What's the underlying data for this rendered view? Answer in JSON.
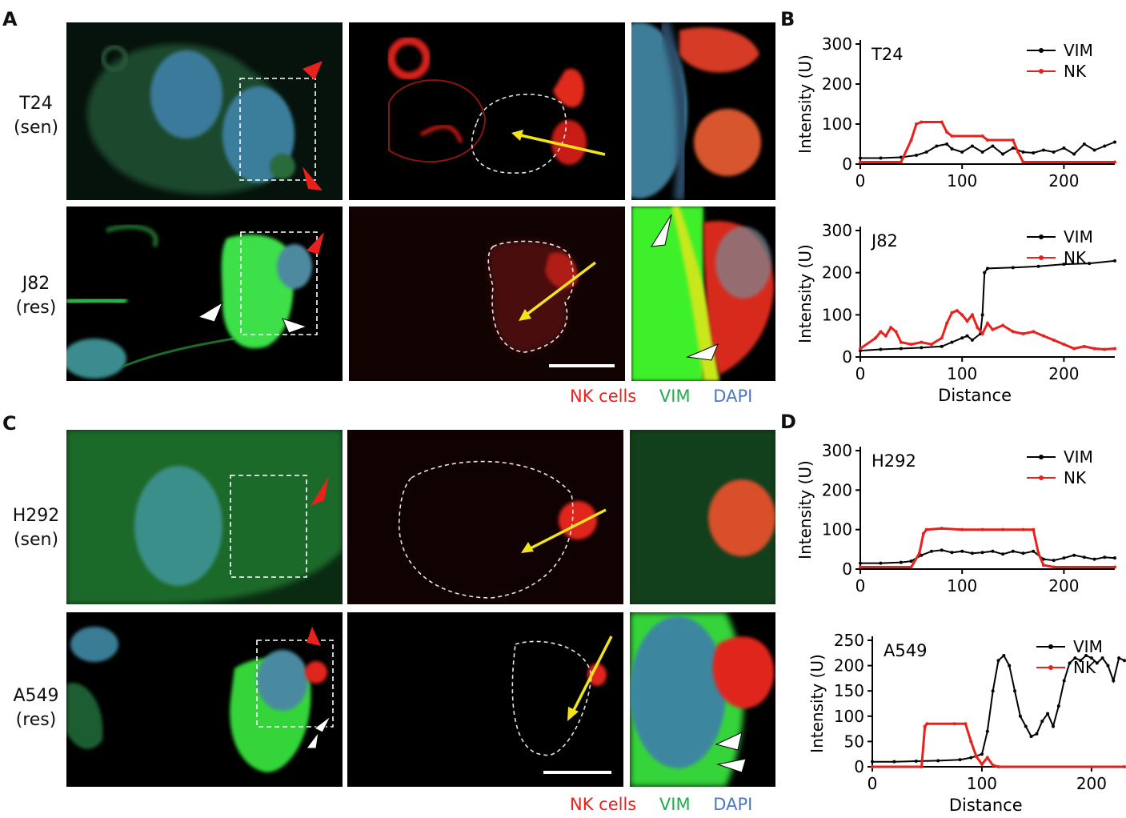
{
  "panels": {
    "A": "A",
    "B": "B",
    "C": "C",
    "D": "D"
  },
  "rows": {
    "t24": {
      "line1": "T24",
      "line2": "(sen)"
    },
    "j82": {
      "line1": "J82",
      "line2": "(res)"
    },
    "h292": {
      "line1": "H292",
      "line2": "(sen)"
    },
    "a549": {
      "line1": "A549",
      "line2": "(res)"
    }
  },
  "legend": {
    "nk": "NK cells",
    "vim": "VIM",
    "dapi": "DAPI",
    "colors": {
      "nk": "#e8211d",
      "vim": "#1fae4b",
      "dapi": "#4a78c2"
    }
  },
  "chart_data": [
    {
      "type": "line",
      "panel": "B",
      "title": "T24",
      "ylabel": "Intensity (U)",
      "xlabel": "",
      "xlim": [
        0,
        250
      ],
      "ylim": [
        0,
        300
      ],
      "xticks": [
        0,
        100,
        200
      ],
      "yticks": [
        0,
        100,
        200,
        300
      ],
      "series": [
        {
          "name": "VIM",
          "color": "#000000",
          "points": [
            [
              0,
              15
            ],
            [
              20,
              15
            ],
            [
              40,
              17
            ],
            [
              55,
              22
            ],
            [
              65,
              30
            ],
            [
              75,
              45
            ],
            [
              85,
              50
            ],
            [
              90,
              38
            ],
            [
              100,
              30
            ],
            [
              110,
              45
            ],
            [
              120,
              30
            ],
            [
              130,
              45
            ],
            [
              140,
              25
            ],
            [
              150,
              40
            ],
            [
              160,
              30
            ],
            [
              170,
              28
            ],
            [
              180,
              35
            ],
            [
              190,
              30
            ],
            [
              200,
              40
            ],
            [
              210,
              25
            ],
            [
              220,
              50
            ],
            [
              230,
              35
            ],
            [
              240,
              45
            ],
            [
              250,
              55
            ]
          ]
        },
        {
          "name": "NK",
          "color": "#e8211d",
          "points": [
            [
              0,
              5
            ],
            [
              40,
              5
            ],
            [
              50,
              60
            ],
            [
              55,
              100
            ],
            [
              60,
              105
            ],
            [
              80,
              105
            ],
            [
              85,
              80
            ],
            [
              90,
              70
            ],
            [
              120,
              70
            ],
            [
              125,
              60
            ],
            [
              150,
              60
            ],
            [
              155,
              30
            ],
            [
              160,
              5
            ],
            [
              250,
              5
            ]
          ]
        }
      ]
    },
    {
      "type": "line",
      "panel": "B",
      "title": "J82",
      "ylabel": "Intensity (U)",
      "xlabel": "Distance",
      "xlim": [
        0,
        250
      ],
      "ylim": [
        0,
        300
      ],
      "xticks": [
        0,
        100,
        200
      ],
      "yticks": [
        0,
        100,
        200,
        300
      ],
      "series": [
        {
          "name": "VIM",
          "color": "#000000",
          "points": [
            [
              0,
              15
            ],
            [
              20,
              18
            ],
            [
              40,
              20
            ],
            [
              60,
              22
            ],
            [
              80,
              25
            ],
            [
              90,
              35
            ],
            [
              100,
              45
            ],
            [
              105,
              50
            ],
            [
              110,
              40
            ],
            [
              118,
              55
            ],
            [
              120,
              100
            ],
            [
              122,
              200
            ],
            [
              125,
              210
            ],
            [
              150,
              212
            ],
            [
              175,
              215
            ],
            [
              200,
              220
            ],
            [
              225,
              222
            ],
            [
              250,
              228
            ]
          ]
        },
        {
          "name": "NK",
          "color": "#e8211d",
          "points": [
            [
              0,
              20
            ],
            [
              15,
              45
            ],
            [
              20,
              60
            ],
            [
              25,
              50
            ],
            [
              30,
              70
            ],
            [
              35,
              60
            ],
            [
              40,
              35
            ],
            [
              50,
              30
            ],
            [
              60,
              35
            ],
            [
              70,
              30
            ],
            [
              80,
              45
            ],
            [
              85,
              80
            ],
            [
              90,
              105
            ],
            [
              95,
              110
            ],
            [
              100,
              100
            ],
            [
              105,
              85
            ],
            [
              110,
              100
            ],
            [
              115,
              70
            ],
            [
              120,
              55
            ],
            [
              125,
              80
            ],
            [
              130,
              65
            ],
            [
              140,
              75
            ],
            [
              150,
              60
            ],
            [
              160,
              55
            ],
            [
              170,
              60
            ],
            [
              180,
              50
            ],
            [
              190,
              40
            ],
            [
              200,
              30
            ],
            [
              210,
              20
            ],
            [
              220,
              25
            ],
            [
              230,
              20
            ],
            [
              240,
              18
            ],
            [
              250,
              20
            ]
          ]
        }
      ]
    },
    {
      "type": "line",
      "panel": "D",
      "title": "H292",
      "ylabel": "Intensity (U)",
      "xlabel": "",
      "xlim": [
        0,
        250
      ],
      "ylim": [
        0,
        300
      ],
      "xticks": [
        0,
        100,
        200
      ],
      "yticks": [
        0,
        100,
        200,
        300
      ],
      "series": [
        {
          "name": "VIM",
          "color": "#000000",
          "points": [
            [
              0,
              15
            ],
            [
              20,
              15
            ],
            [
              40,
              17
            ],
            [
              50,
              20
            ],
            [
              60,
              35
            ],
            [
              70,
              45
            ],
            [
              80,
              48
            ],
            [
              90,
              42
            ],
            [
              100,
              45
            ],
            [
              110,
              40
            ],
            [
              120,
              42
            ],
            [
              130,
              45
            ],
            [
              140,
              38
            ],
            [
              150,
              45
            ],
            [
              160,
              40
            ],
            [
              170,
              45
            ],
            [
              180,
              25
            ],
            [
              190,
              22
            ],
            [
              200,
              28
            ],
            [
              210,
              35
            ],
            [
              220,
              30
            ],
            [
              230,
              25
            ],
            [
              240,
              30
            ],
            [
              250,
              28
            ]
          ]
        },
        {
          "name": "NK",
          "color": "#e8211d",
          "points": [
            [
              0,
              5
            ],
            [
              50,
              5
            ],
            [
              58,
              40
            ],
            [
              62,
              90
            ],
            [
              65,
              100
            ],
            [
              80,
              103
            ],
            [
              100,
              100
            ],
            [
              120,
              100
            ],
            [
              140,
              100
            ],
            [
              160,
              100
            ],
            [
              170,
              100
            ],
            [
              175,
              40
            ],
            [
              180,
              10
            ],
            [
              190,
              5
            ],
            [
              250,
              5
            ]
          ]
        }
      ]
    },
    {
      "type": "line",
      "panel": "D",
      "title": "A549",
      "ylabel": "Intensity (U)",
      "xlabel": "Distance",
      "xlim": [
        0,
        230
      ],
      "ylim": [
        0,
        250
      ],
      "xticks": [
        0,
        100,
        200
      ],
      "yticks": [
        0,
        50,
        100,
        150,
        200,
        250
      ],
      "series": [
        {
          "name": "VIM",
          "color": "#000000",
          "points": [
            [
              0,
              10
            ],
            [
              20,
              10
            ],
            [
              40,
              11
            ],
            [
              60,
              12
            ],
            [
              80,
              14
            ],
            [
              90,
              18
            ],
            [
              100,
              25
            ],
            [
              105,
              70
            ],
            [
              110,
              150
            ],
            [
              115,
              210
            ],
            [
              120,
              220
            ],
            [
              125,
              200
            ],
            [
              130,
              150
            ],
            [
              135,
              100
            ],
            [
              140,
              80
            ],
            [
              145,
              60
            ],
            [
              150,
              65
            ],
            [
              155,
              90
            ],
            [
              160,
              105
            ],
            [
              165,
              80
            ],
            [
              170,
              120
            ],
            [
              175,
              170
            ],
            [
              180,
              205
            ],
            [
              185,
              215
            ],
            [
              190,
              210
            ],
            [
              195,
              220
            ],
            [
              200,
              215
            ],
            [
              205,
              205
            ],
            [
              210,
              215
            ],
            [
              215,
              200
            ],
            [
              220,
              170
            ],
            [
              225,
              215
            ],
            [
              230,
              210
            ]
          ]
        },
        {
          "name": "NK",
          "color": "#e8211d",
          "points": [
            [
              0,
              0
            ],
            [
              45,
              0
            ],
            [
              48,
              80
            ],
            [
              50,
              85
            ],
            [
              75,
              85
            ],
            [
              85,
              85
            ],
            [
              90,
              50
            ],
            [
              95,
              20
            ],
            [
              100,
              5
            ],
            [
              105,
              18
            ],
            [
              110,
              3
            ],
            [
              115,
              0
            ],
            [
              230,
              0
            ]
          ]
        }
      ]
    }
  ]
}
